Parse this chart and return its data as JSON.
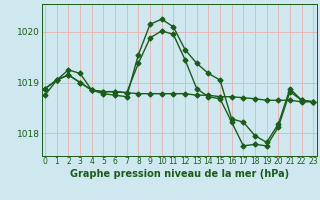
{
  "bg_color": "#cfe8f0",
  "grid_color": "#e8b0b0",
  "line_color": "#1a5c1a",
  "marker": "D",
  "markersize": 2.5,
  "linewidth": 1.0,
  "xlabel": "Graphe pression niveau de la mer (hPa)",
  "xlabel_fontsize": 7,
  "xtick_labels": [
    "0",
    "1",
    "2",
    "3",
    "4",
    "5",
    "6",
    "7",
    "8",
    "9",
    "10",
    "11",
    "12",
    "13",
    "14",
    "15",
    "16",
    "17",
    "18",
    "19",
    "20",
    "21",
    "22",
    "23"
  ],
  "xtick_fontsize": 5.5,
  "ytick_fontsize": 6.5,
  "xlim": [
    -0.3,
    23.3
  ],
  "ylim": [
    1017.55,
    1020.55
  ],
  "yticks": [
    1018,
    1019,
    1020
  ],
  "series": [
    [
      1018.75,
      1019.05,
      1019.25,
      1019.18,
      1018.85,
      1018.78,
      1018.75,
      1018.72,
      1019.55,
      1020.15,
      1020.25,
      1020.1,
      1019.65,
      1019.38,
      1019.18,
      1019.05,
      1018.28,
      1018.22,
      1017.95,
      1017.82,
      1018.18,
      1018.88,
      1018.65,
      1018.62
    ],
    [
      1018.88,
      1019.05,
      1019.15,
      1019.0,
      1018.85,
      1018.82,
      1018.82,
      1018.8,
      1018.78,
      1018.78,
      1018.78,
      1018.78,
      1018.78,
      1018.75,
      1018.75,
      1018.72,
      1018.72,
      1018.7,
      1018.68,
      1018.65,
      1018.65,
      1018.65,
      1018.62,
      1018.62
    ],
    [
      1018.88,
      1019.05,
      1019.15,
      1019.0,
      1018.85,
      1018.82,
      1018.82,
      1018.8,
      1019.38,
      1019.88,
      1020.02,
      1019.95,
      1019.45,
      1018.88,
      1018.72,
      1018.68,
      1018.22,
      1017.75,
      1017.78,
      1017.75,
      1018.12,
      1018.82,
      1018.65,
      1018.62
    ]
  ]
}
